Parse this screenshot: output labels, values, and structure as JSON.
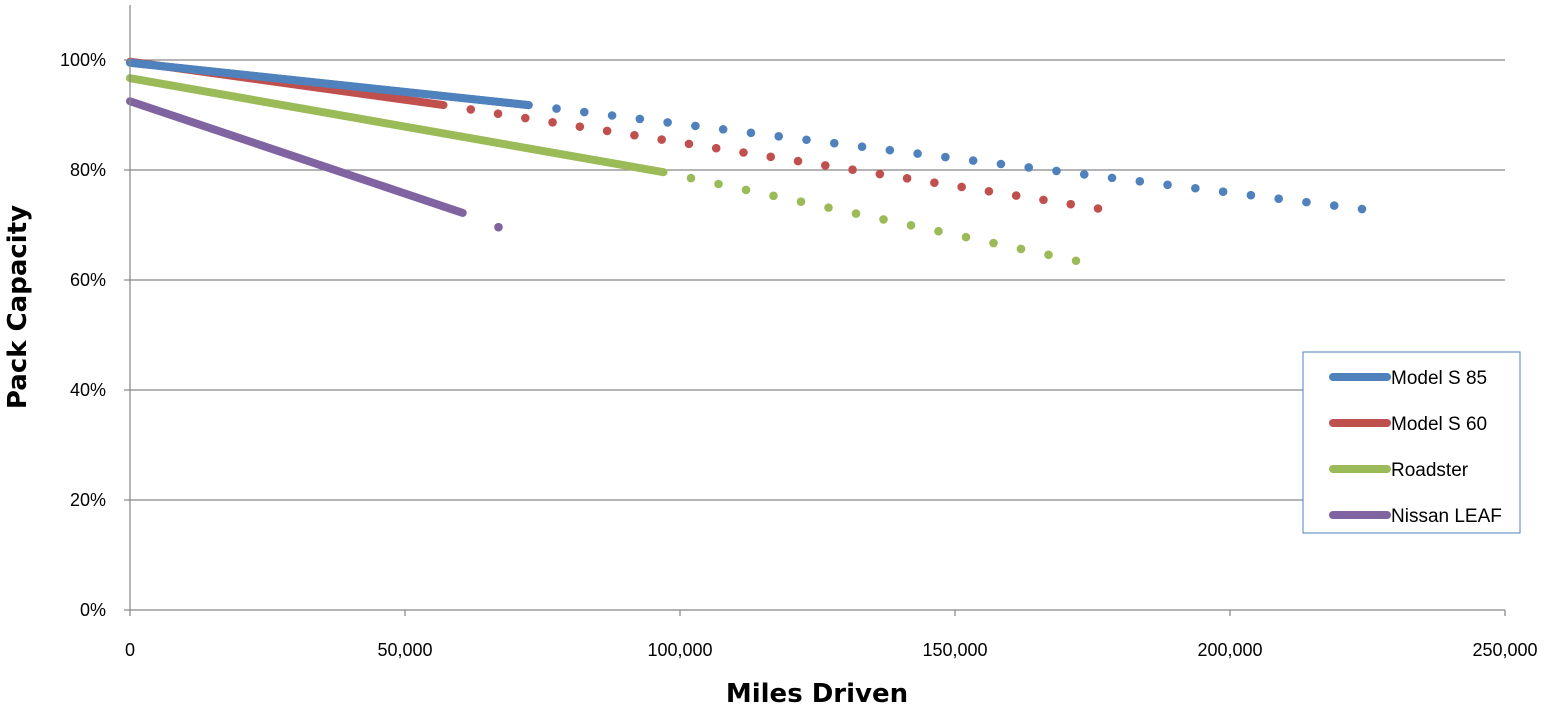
{
  "chart_data": {
    "type": "line",
    "title": "",
    "xlabel": "Miles Driven",
    "ylabel": "Pack Capacity",
    "xlim": [
      0,
      250000
    ],
    "ylim": [
      0,
      1
    ],
    "x_ticks": [
      0,
      50000,
      100000,
      150000,
      200000,
      250000
    ],
    "x_tick_labels": [
      "0",
      "50,000",
      "100,000",
      "150,000",
      "200,000",
      "250,000"
    ],
    "y_ticks": [
      0,
      0.2,
      0.4,
      0.6,
      0.8,
      1.0
    ],
    "y_tick_labels": [
      "0%",
      "20%",
      "40%",
      "60%",
      "80%",
      "100%"
    ],
    "grid": "horizontal",
    "legend_position": "right",
    "series": [
      {
        "name": "Model S 85",
        "color": "#4f81bd",
        "observed": [
          [
            0,
            0.995
          ],
          [
            72500,
            0.918
          ]
        ],
        "projected": [
          [
            72500,
            0.918
          ],
          [
            224000,
            0.729
          ]
        ]
      },
      {
        "name": "Model S 60",
        "color": "#c0504d",
        "observed": [
          [
            0,
            0.997
          ],
          [
            57000,
            0.918
          ]
        ],
        "projected": [
          [
            57000,
            0.918
          ],
          [
            176000,
            0.73
          ]
        ]
      },
      {
        "name": "Roadster",
        "color": "#9bbb59",
        "observed": [
          [
            0,
            0.967
          ],
          [
            97000,
            0.796
          ]
        ],
        "projected": [
          [
            97000,
            0.796
          ],
          [
            172000,
            0.635
          ]
        ]
      },
      {
        "name": "Nissan LEAF",
        "color": "#8064a2",
        "observed": [
          [
            0,
            0.925
          ],
          [
            60500,
            0.722
          ]
        ],
        "projected": [
          [
            60500,
            0.722
          ],
          [
            67000,
            0.696
          ]
        ]
      }
    ]
  }
}
